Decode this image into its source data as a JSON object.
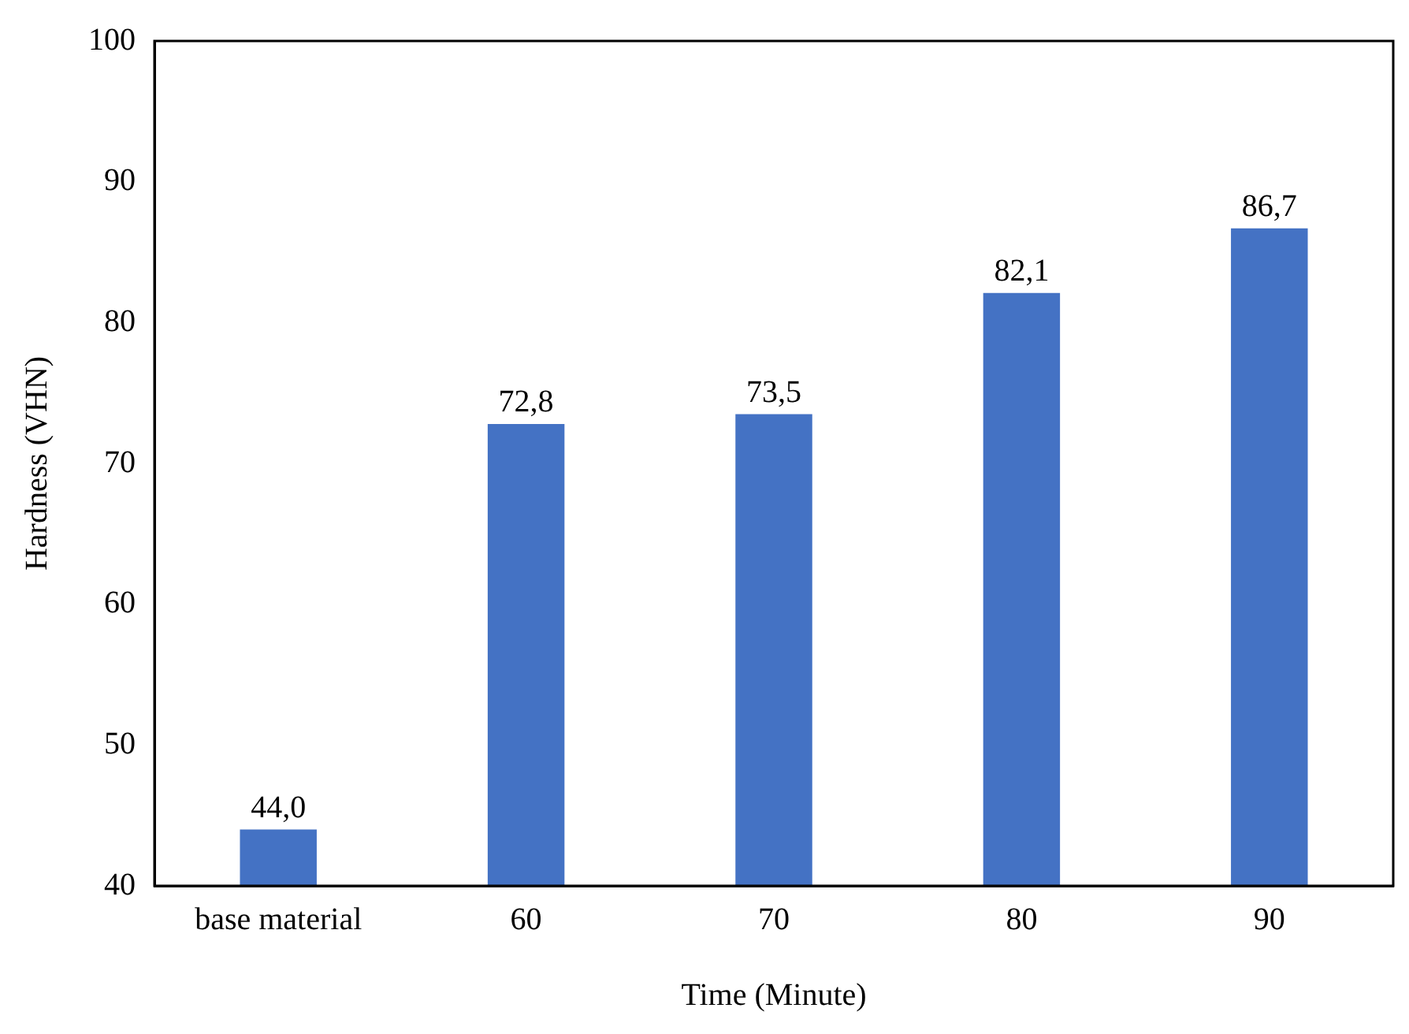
{
  "chart_data": {
    "type": "bar",
    "xlabel": "Time (Minute)",
    "ylabel": "Hardness (VHN)",
    "categories": [
      "base material",
      "60",
      "70",
      "80",
      "90"
    ],
    "values": [
      44.0,
      72.8,
      73.5,
      82.1,
      86.7
    ],
    "value_labels": [
      "44,0",
      "72,8",
      "73,5",
      "82,1",
      "86,7"
    ],
    "color": "#4472c4",
    "ylim": [
      40,
      100
    ],
    "yticks": [
      40,
      50,
      60,
      70,
      80,
      90,
      100
    ],
    "grid": false,
    "legend": false
  }
}
